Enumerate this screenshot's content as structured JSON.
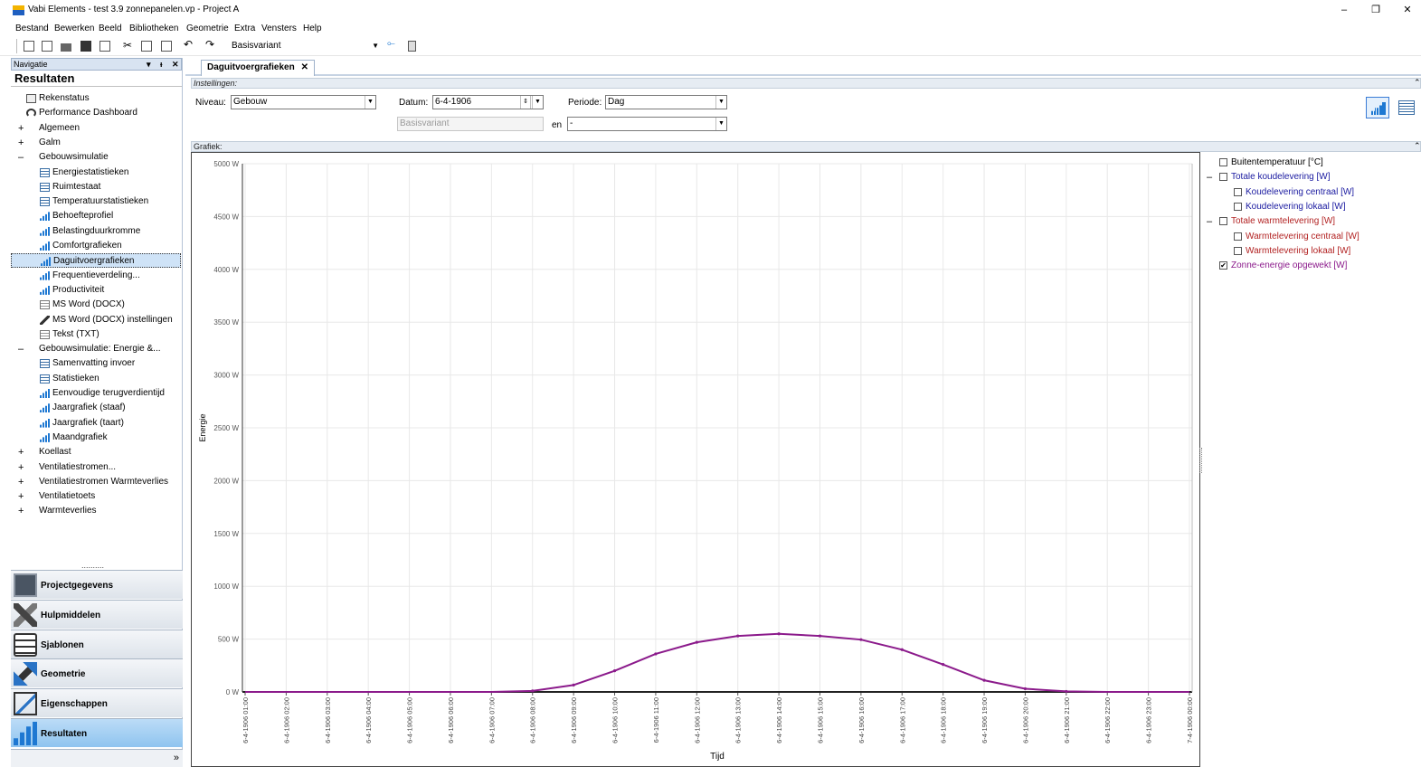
{
  "window": {
    "title": "Vabi Elements - test 3.9 zonnepanelen.vp - Project A",
    "minimize": "–",
    "restore": "❐",
    "close": "✕"
  },
  "menu": [
    "Bestand",
    "Bewerken",
    "Beeld",
    "Bibliotheken",
    "Geometrie",
    "Extra",
    "Vensters",
    "Help"
  ],
  "toolbar": {
    "variant": "Basisvariant"
  },
  "navigation": {
    "header": "Navigatie",
    "pin": "▾  4 ✕",
    "title": "Resultaten",
    "items": [
      {
        "label": "Rekenstatus",
        "icon": "calculator-icon",
        "kind": "root-icon"
      },
      {
        "label": "Performance Dashboard",
        "icon": "gauge-icon",
        "kind": "root-icon"
      },
      {
        "label": "Algemeen",
        "expander": "+",
        "kind": "group"
      },
      {
        "label": "Galm",
        "expander": "+",
        "kind": "group"
      },
      {
        "label": "Gebouwsimulatie",
        "expander": "–",
        "kind": "group"
      },
      {
        "label": "Energiestatistieken",
        "icon": "table-icon",
        "kind": "child"
      },
      {
        "label": "Ruimtestaat",
        "icon": "table-icon",
        "kind": "child"
      },
      {
        "label": "Temperatuurstatistieken",
        "icon": "table-icon",
        "kind": "child"
      },
      {
        "label": "Behoefteprofiel",
        "icon": "bar-chart-icon",
        "kind": "child"
      },
      {
        "label": "Belastingduurkromme",
        "icon": "bar-chart-icon",
        "kind": "child"
      },
      {
        "label": "Comfortgrafieken",
        "icon": "bar-chart-icon",
        "kind": "child"
      },
      {
        "label": "Daguitvoergrafieken",
        "icon": "bar-chart-icon",
        "kind": "child",
        "selected": true
      },
      {
        "label": "Frequentieverdeling...",
        "icon": "bar-chart-icon",
        "kind": "child"
      },
      {
        "label": "Productiviteit",
        "icon": "bar-chart-icon",
        "kind": "child"
      },
      {
        "label": "MS Word (DOCX)",
        "icon": "document-icon",
        "kind": "child"
      },
      {
        "label": "MS Word (DOCX) instellingen",
        "icon": "pen-icon",
        "kind": "child"
      },
      {
        "label": "Tekst (TXT)",
        "icon": "document-icon",
        "kind": "child"
      },
      {
        "label": "Gebouwsimulatie: Energie &...",
        "expander": "–",
        "kind": "group"
      },
      {
        "label": "Samenvatting invoer",
        "icon": "table-icon",
        "kind": "child"
      },
      {
        "label": "Statistieken",
        "icon": "table-icon",
        "kind": "child"
      },
      {
        "label": "Eenvoudige terugverdientijd",
        "icon": "bar-chart-icon",
        "kind": "child"
      },
      {
        "label": "Jaargrafiek (staaf)",
        "icon": "bar-chart-icon",
        "kind": "child"
      },
      {
        "label": "Jaargrafiek (taart)",
        "icon": "bar-chart-icon",
        "kind": "child"
      },
      {
        "label": "Maandgrafiek",
        "icon": "bar-chart-icon",
        "kind": "child"
      },
      {
        "label": "Koellast",
        "expander": "+",
        "kind": "group"
      },
      {
        "label": "Ventilatiestromen...",
        "expander": "+",
        "kind": "group"
      },
      {
        "label": "Ventilatiestromen Warmteverlies",
        "expander": "+",
        "kind": "group"
      },
      {
        "label": "Ventilatietoets",
        "expander": "+",
        "kind": "group"
      },
      {
        "label": "Warmteverlies",
        "expander": "+",
        "kind": "group"
      }
    ],
    "grip": "..........",
    "buttons": [
      {
        "label": "Projectgegevens",
        "icon": "project-icon",
        "cls": "project"
      },
      {
        "label": "Hulpmiddelen",
        "icon": "tools-icon",
        "cls": "tools"
      },
      {
        "label": "Sjablonen",
        "icon": "templates-icon",
        "cls": "templates"
      },
      {
        "label": "Geometrie",
        "icon": "geometry-icon",
        "cls": "geometry"
      },
      {
        "label": "Eigenschappen",
        "icon": "properties-icon",
        "cls": "props"
      },
      {
        "label": "Resultaten",
        "icon": "results-icon",
        "cls": "results",
        "active": true
      }
    ],
    "more": "»"
  },
  "document_tab": {
    "label": "Daguitvoergrafieken",
    "close": "✕"
  },
  "settings": {
    "header": "Instellingen:",
    "level_label": "Niveau:",
    "level_value": "Gebouw",
    "date_label": "Datum:",
    "date_value": "6-4-1906",
    "period_label": "Periode:",
    "period_value": "Dag",
    "variant_value": "Basisvariant",
    "and_label": "en",
    "compare_value": "-"
  },
  "graph_header": "Grafiek:",
  "chart_data": {
    "type": "line",
    "xlabel": "Tijd",
    "ylabel": "Energie",
    "ylim": [
      0,
      5000
    ],
    "yticks": [
      "0 W",
      "500 W",
      "1000 W",
      "1500 W",
      "2000 W",
      "2500 W",
      "3000 W",
      "3500 W",
      "4000 W",
      "4500 W",
      "5000 W"
    ],
    "x": [
      "6-4-1906 01:00",
      "6-4-1906 02:00",
      "6-4-1906 03:00",
      "6-4-1906 04:00",
      "6-4-1906 05:00",
      "6-4-1906 06:00",
      "6-4-1906 07:00",
      "6-4-1906 08:00",
      "6-4-1906 09:00",
      "6-4-1906 10:00",
      "6-4-1906 11:00",
      "6-4-1906 12:00",
      "6-4-1906 13:00",
      "6-4-1906 14:00",
      "6-4-1906 15:00",
      "6-4-1906 16:00",
      "6-4-1906 17:00",
      "6-4-1906 18:00",
      "6-4-1906 19:00",
      "6-4-1906 20:00",
      "6-4-1906 21:00",
      "6-4-1906 22:00",
      "6-4-1906 23:00",
      "7-4-1906 00:00"
    ],
    "series": [
      {
        "name": "Zonne-energie opgewekt [W]",
        "color": "#8b1a8b",
        "values": [
          0,
          0,
          0,
          0,
          0,
          0,
          0,
          10,
          65,
          200,
          360,
          470,
          530,
          550,
          530,
          495,
          400,
          260,
          110,
          30,
          5,
          0,
          0,
          0
        ]
      }
    ],
    "grid": true,
    "legend": "right"
  },
  "legend": {
    "items": [
      {
        "label": "Buitentemperatuur [°C]",
        "color": "#000000",
        "checked": false,
        "level": 0
      },
      {
        "label": "Totale koudelevering [W]",
        "color": "#1a1aa0",
        "checked": false,
        "level": 0,
        "toggle": "–"
      },
      {
        "label": "Koudelevering centraal [W]",
        "color": "#1a1aa0",
        "checked": false,
        "level": 1
      },
      {
        "label": "Koudelevering lokaal [W]",
        "color": "#1a1aa0",
        "checked": false,
        "level": 1
      },
      {
        "label": "Totale warmtelevering [W]",
        "color": "#b22222",
        "checked": false,
        "level": 0,
        "toggle": "–"
      },
      {
        "label": "Warmtelevering centraal [W]",
        "color": "#b22222",
        "checked": false,
        "level": 1
      },
      {
        "label": "Warmtelevering lokaal [W]",
        "color": "#b22222",
        "checked": false,
        "level": 1
      },
      {
        "label": "Zonne-energie opgewekt [W]",
        "color": "#8b1a8b",
        "checked": true,
        "level": 0,
        "mark": "✔"
      }
    ]
  }
}
